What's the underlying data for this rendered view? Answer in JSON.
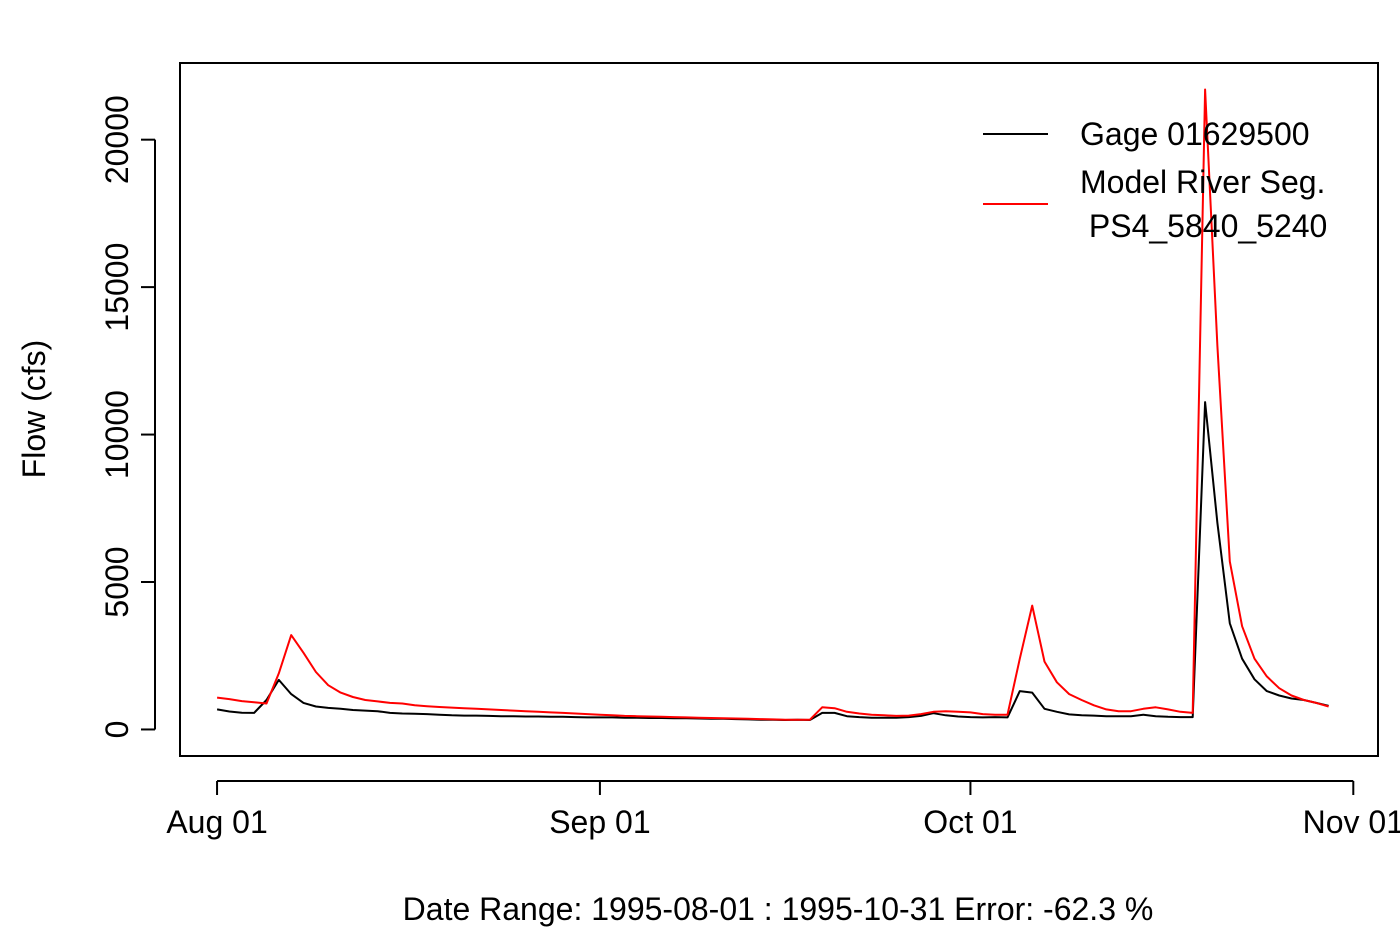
{
  "chart_data": {
    "type": "line",
    "title": "",
    "xlabel": "Date Range: 1995-08-01 : 1995-10-31   Error: -62.3 %",
    "ylabel": "Flow (cfs)",
    "x_start": "1995-08-01",
    "x_end": "1995-10-31",
    "xlim": [
      "1995-07-29",
      "1995-11-03"
    ],
    "ylim": [
      -900,
      22600
    ],
    "x_ticks": [
      {
        "date": "1995-08-01",
        "label": "Aug 01"
      },
      {
        "date": "1995-09-01",
        "label": "Sep 01"
      },
      {
        "date": "1995-10-01",
        "label": "Oct 01"
      },
      {
        "date": "1995-11-01",
        "label": "Nov 01"
      }
    ],
    "y_ticks": [
      0,
      5000,
      10000,
      15000,
      20000
    ],
    "legend_position": "top-right",
    "grid": false,
    "series": [
      {
        "name": "Gage 01629500",
        "color": "#000000",
        "values": [
          680,
          610,
          570,
          560,
          1000,
          1680,
          1200,
          900,
          780,
          730,
          700,
          660,
          640,
          620,
          560,
          540,
          530,
          520,
          500,
          480,
          470,
          470,
          460,
          450,
          450,
          440,
          440,
          430,
          430,
          420,
          410,
          410,
          410,
          400,
          400,
          390,
          390,
          380,
          380,
          370,
          360,
          360,
          350,
          340,
          330,
          330,
          320,
          330,
          320,
          560,
          560,
          450,
          420,
          400,
          400,
          400,
          420,
          460,
          550,
          480,
          440,
          420,
          410,
          420,
          410,
          1300,
          1250,
          700,
          600,
          510,
          480,
          470,
          450,
          450,
          450,
          500,
          450,
          430,
          420,
          420,
          11100,
          7000,
          3600,
          2400,
          1700,
          1300,
          1150,
          1050,
          1000,
          900,
          800
        ]
      },
      {
        "name": "Model River Seg.\n PS4_5840_5240",
        "color": "#ff0000",
        "values": [
          1080,
          1030,
          960,
          920,
          880,
          1900,
          3200,
          2600,
          1950,
          1500,
          1250,
          1100,
          1000,
          950,
          900,
          880,
          820,
          790,
          760,
          740,
          720,
          700,
          680,
          660,
          640,
          620,
          600,
          580,
          560,
          540,
          520,
          500,
          480,
          460,
          450,
          440,
          430,
          420,
          410,
          400,
          390,
          380,
          370,
          360,
          350,
          340,
          330,
          330,
          330,
          750,
          720,
          600,
          540,
          500,
          480,
          460,
          470,
          520,
          600,
          620,
          600,
          580,
          520,
          500,
          500,
          2400,
          4200,
          2300,
          1600,
          1200,
          1000,
          820,
          680,
          620,
          620,
          700,
          750,
          680,
          600,
          560,
          21700,
          13000,
          5700,
          3500,
          2400,
          1800,
          1400,
          1150,
          1000,
          900,
          780
        ]
      }
    ]
  }
}
